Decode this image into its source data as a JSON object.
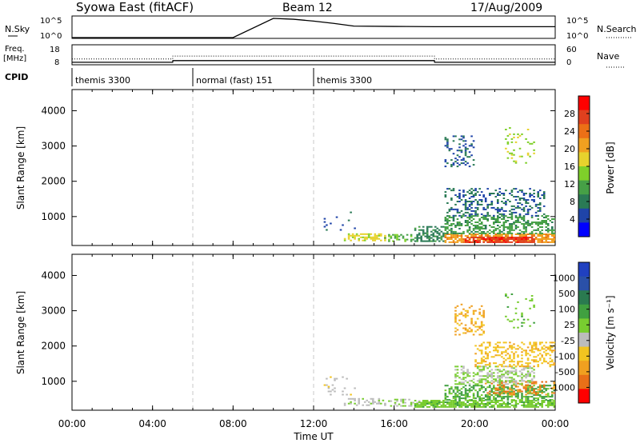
{
  "header": {
    "station": "Syowa East (fitACF)",
    "beam": "Beam 12",
    "date": "17/Aug/2009"
  },
  "strips": {
    "nsky_label": "N.Sky",
    "nsky_ticks": [
      "10^5",
      "10^0"
    ],
    "nsearch_label": "N.Search",
    "nsearch_ticks": [
      "10^5",
      "10^0"
    ],
    "freq_label_1": "Freq.",
    "freq_label_2": "[MHz]",
    "freq_ticks": [
      "18",
      "8"
    ],
    "nave_label": "Nave",
    "nave_ticks": [
      "60",
      "0"
    ],
    "cpid_label": "CPID"
  },
  "cpid_segments": [
    {
      "label": "themis 3300",
      "start": 0,
      "end": 6
    },
    {
      "label": "normal (fast) 151",
      "start": 6,
      "end": 12
    },
    {
      "label": "themis 3300",
      "start": 12,
      "end": 24
    }
  ],
  "axes": {
    "ylabel": "Slant Range [km]",
    "xlabel": "Time UT",
    "y_ticks": [
      "1000",
      "2000",
      "3000",
      "4000"
    ],
    "x_ticks": [
      "00:00",
      "04:00",
      "08:00",
      "12:00",
      "16:00",
      "20:00",
      "00:00"
    ],
    "xlim_hours": [
      0,
      24
    ],
    "ylim_km": [
      180,
      4600
    ]
  },
  "colors": {
    "power": [
      "#0000ff",
      "#1f44a8",
      "#2a7a55",
      "#46a046",
      "#7fd02a",
      "#e7d22d",
      "#f0a020",
      "#ec7016",
      "#e0401e",
      "#ff0000"
    ],
    "velocity": [
      "#2040c0",
      "#2a50a8",
      "#2a7a50",
      "#40a040",
      "#78cc30",
      "#bcbcbc",
      "#f2c420",
      "#f0a020",
      "#e87018",
      "#ff0000"
    ]
  },
  "chart_data": [
    {
      "type": "line",
      "title": "N.Sky / N.Search",
      "x": [
        0,
        2,
        4,
        6,
        8,
        10,
        11,
        12,
        13,
        14,
        16,
        18,
        20,
        22,
        24
      ],
      "series": [
        {
          "name": "N.Sky",
          "values": [
            0,
            0,
            0,
            0,
            0,
            100000,
            60000,
            20000,
            5000,
            1000,
            800,
            700,
            700,
            700,
            700
          ]
        }
      ]
    },
    {
      "type": "line",
      "title": "Freq. / Nave",
      "x": [
        0,
        5,
        5.01,
        18,
        18.01,
        24
      ],
      "series": [
        {
          "name": "Freq.",
          "values": [
            9.5,
            9.5,
            11,
            11,
            9.5,
            9.5
          ]
        },
        {
          "name": "Nave",
          "values": [
            17,
            17,
            27,
            27,
            17,
            17
          ]
        }
      ]
    },
    {
      "type": "heatmap",
      "title": "Power [dB]",
      "xlabel": "Time UT",
      "ylabel": "Slant Range [km]",
      "colorbar": {
        "label": "Power [dB]",
        "ticks": [
          "4",
          "8",
          "12",
          "16",
          "20",
          "24",
          "28"
        ],
        "range": [
          0,
          30
        ]
      },
      "clusters": [
        {
          "t": [
            13.5,
            15.5
          ],
          "r": [
            300,
            500
          ],
          "v": 16,
          "density": 0.5
        },
        {
          "t": [
            15.5,
            17.0
          ],
          "r": [
            280,
            500
          ],
          "v": 12,
          "density": 0.4
        },
        {
          "t": [
            17.0,
            18.5
          ],
          "r": [
            280,
            700
          ],
          "v": 8,
          "density": 0.45
        },
        {
          "t": [
            18.5,
            24.0
          ],
          "r": [
            250,
            500
          ],
          "v": 20,
          "density": 0.7
        },
        {
          "t": [
            19.5,
            23.0
          ],
          "r": [
            250,
            420
          ],
          "v": 26,
          "density": 0.8
        },
        {
          "t": [
            18.5,
            24.0
          ],
          "r": [
            500,
            1000
          ],
          "v": 10,
          "density": 0.45
        },
        {
          "t": [
            18.5,
            23.5
          ],
          "r": [
            1000,
            1800
          ],
          "v": 6,
          "density": 0.3
        },
        {
          "t": [
            18.5,
            20.0
          ],
          "r": [
            2400,
            3300
          ],
          "v": 6,
          "density": 0.25
        },
        {
          "t": [
            12.5,
            14.0
          ],
          "r": [
            600,
            1100
          ],
          "v": 6,
          "density": 0.1
        },
        {
          "t": [
            21.5,
            23.0
          ],
          "r": [
            2500,
            3500
          ],
          "v": 14,
          "density": 0.1
        }
      ]
    },
    {
      "type": "heatmap",
      "title": "Velocity [m s^-1]",
      "xlabel": "Time UT",
      "ylabel": "Slant Range [km]",
      "colorbar": {
        "label": "Velocity [m s⁻¹]",
        "ticks": [
          "1000",
          "500",
          "100",
          "25",
          "-25",
          "-100",
          "-500",
          "-1000"
        ],
        "range": [
          -1200,
          1200
        ]
      },
      "clusters": [
        {
          "t": [
            13.5,
            15.5
          ],
          "r": [
            300,
            500
          ],
          "v": -100,
          "density": 0.4
        },
        {
          "t": [
            15.5,
            17.5
          ],
          "r": [
            280,
            500
          ],
          "v": 10,
          "density": 0.35
        },
        {
          "t": [
            17.0,
            24.0
          ],
          "r": [
            250,
            450
          ],
          "v": 150,
          "density": 0.75
        },
        {
          "t": [
            18.5,
            24.0
          ],
          "r": [
            450,
            900
          ],
          "v": 300,
          "density": 0.5
        },
        {
          "t": [
            20.5,
            24.0
          ],
          "r": [
            600,
            1000
          ],
          "v": -700,
          "density": 0.3
        },
        {
          "t": [
            19.0,
            23.0
          ],
          "r": [
            900,
            1400
          ],
          "v": 5,
          "density": 0.45
        },
        {
          "t": [
            20.0,
            24.0
          ],
          "r": [
            1400,
            2100
          ],
          "v": -400,
          "density": 0.35
        },
        {
          "t": [
            19.0,
            20.5
          ],
          "r": [
            2300,
            3200
          ],
          "v": -500,
          "density": 0.3
        },
        {
          "t": [
            12.5,
            14.0
          ],
          "r": [
            600,
            1100
          ],
          "v": -150,
          "density": 0.1
        },
        {
          "t": [
            21.5,
            23.0
          ],
          "r": [
            2500,
            3500
          ],
          "v": 150,
          "density": 0.1
        }
      ]
    }
  ]
}
